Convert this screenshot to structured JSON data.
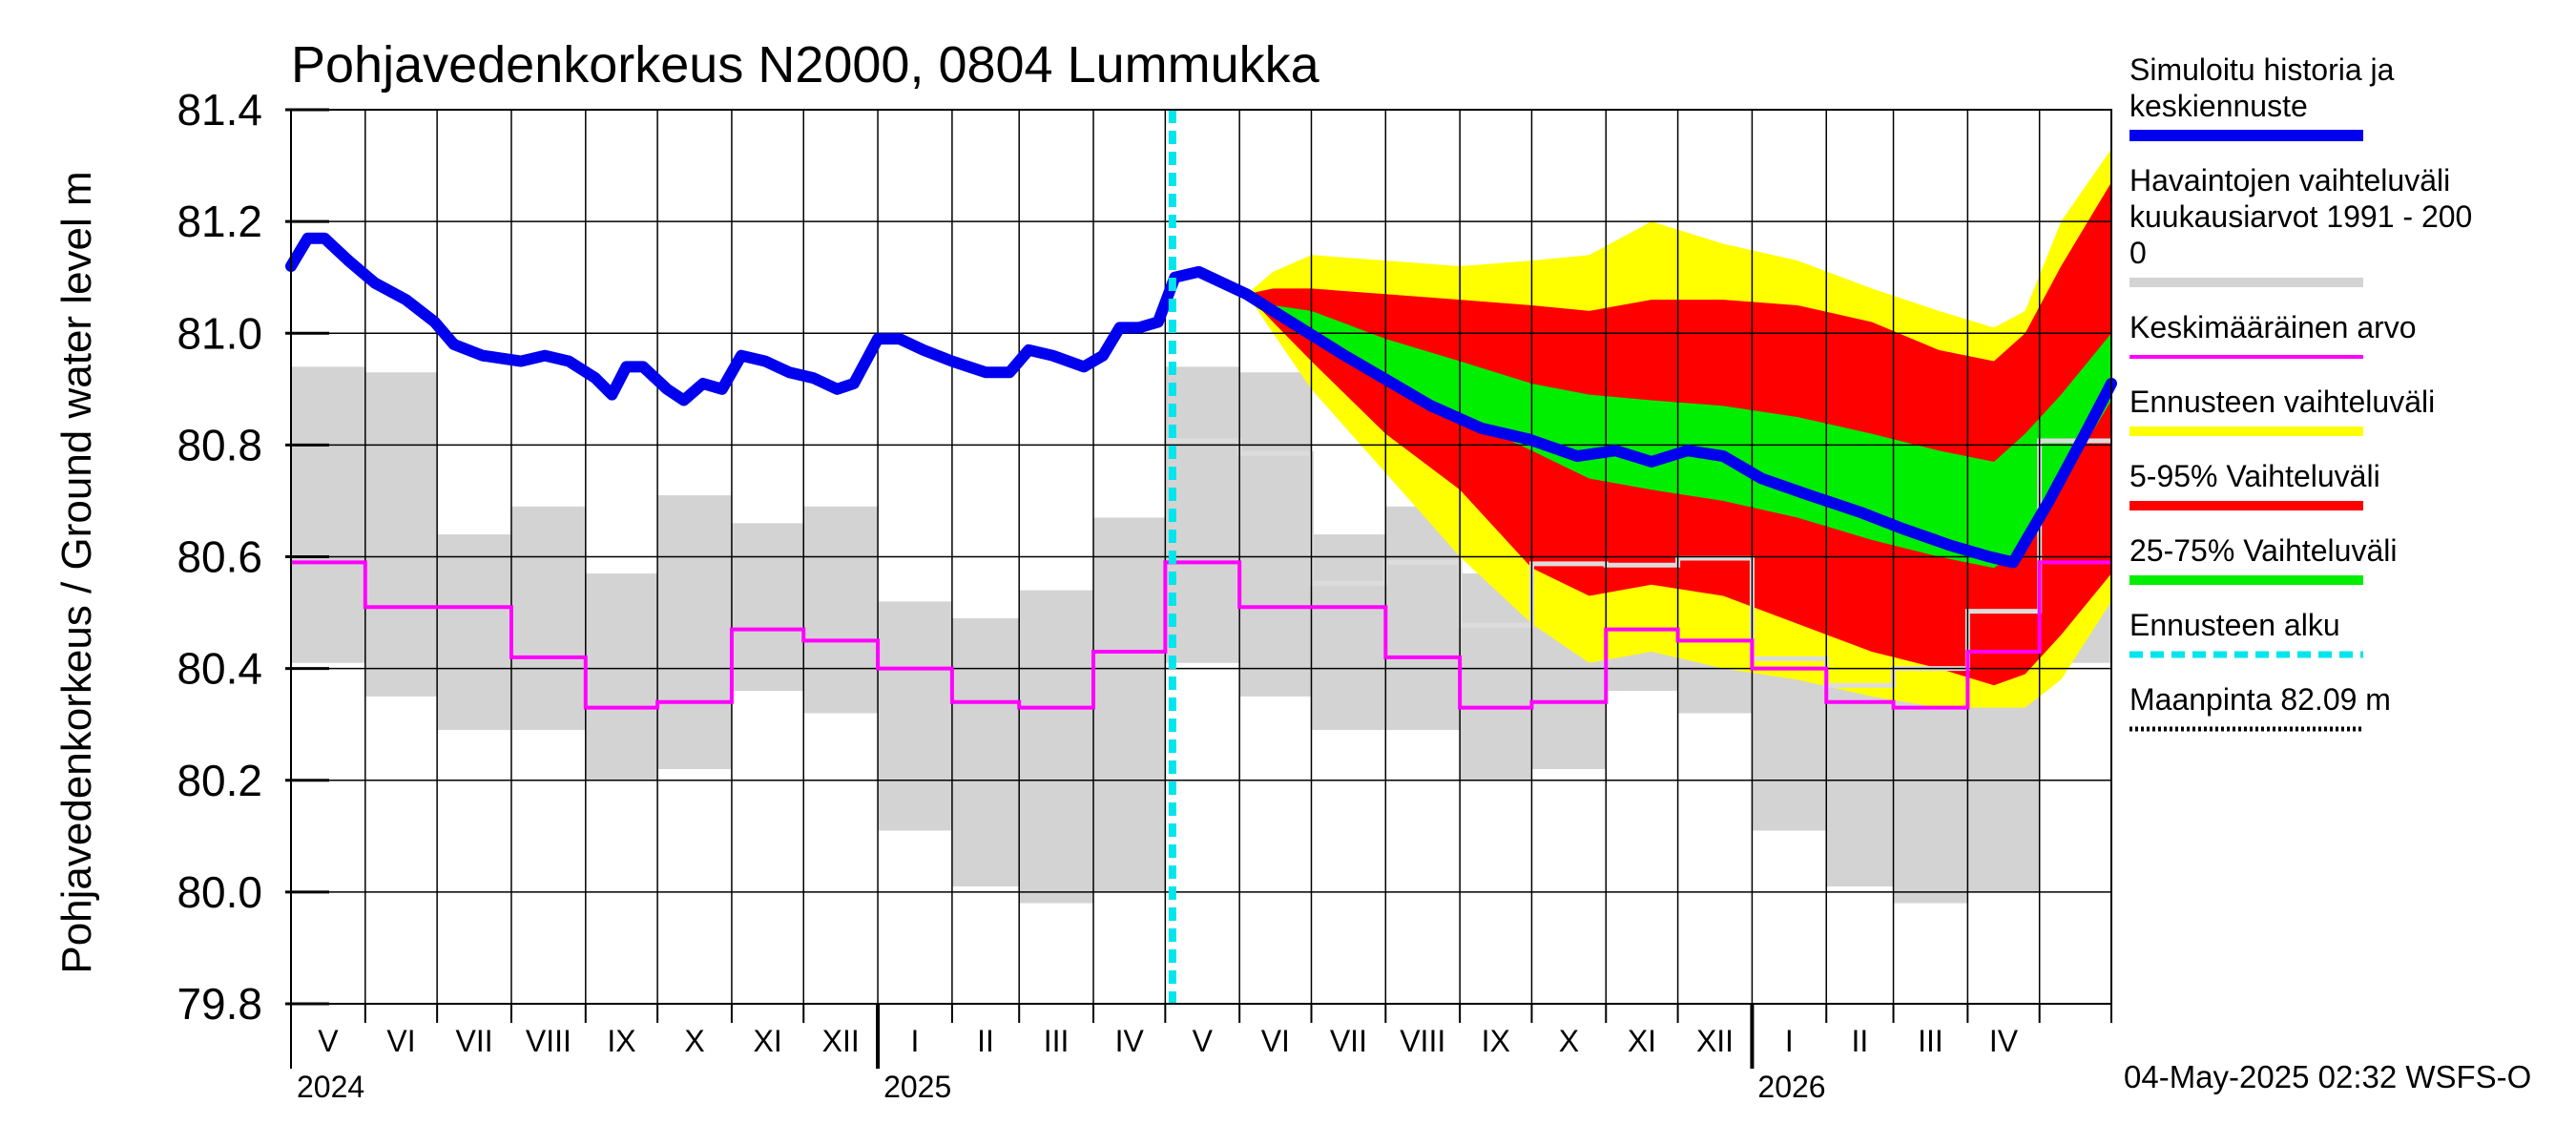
{
  "chart_data": {
    "type": "line",
    "title": "Pohjavedenkorkeus N2000, 0804 Lummukka",
    "ylabel": "Pohjavedenkorkeus / Ground water level   m",
    "ylim": [
      79.8,
      81.4
    ],
    "yticks": [
      "81.4",
      "81.2",
      "81.0",
      "80.8",
      "80.6",
      "80.4",
      "80.2",
      "80.0",
      "79.8"
    ],
    "grid": true,
    "xlim": [
      "2024-05-01",
      "2026-05-31"
    ],
    "x_months": [
      "V",
      "VI",
      "VII",
      "VIII",
      "IX",
      "X",
      "XI",
      "XII",
      "I",
      "II",
      "III",
      "IV",
      "V",
      "VI",
      "VII",
      "VIII",
      "IX",
      "X",
      "XI",
      "XII",
      "I",
      "II",
      "III",
      "IV"
    ],
    "x_years": [
      "2024",
      "2025",
      "2026"
    ],
    "forecast_start": "2025-05-04",
    "footer": "04-May-2025 02:32 WSFS-O",
    "legend_position": "right",
    "colors": {
      "history": "#0000ee",
      "observed_range": "#d3d3d3",
      "mean": "#ff00ff",
      "forecast_range": "#ffff00",
      "range_5_95": "#ff0000",
      "range_25_75": "#00ee00",
      "forecast_start": "#00e5ee",
      "ground": "#000000"
    },
    "legend": [
      {
        "label": "Simuloitu historia ja keskiennuste",
        "label_lines": [
          "Simuloitu historia ja",
          "keskiennuste"
        ],
        "color": "#0000ee",
        "style": "thick"
      },
      {
        "label": "Havaintojen vaihteluväli kuukausiarvot 1991 - 2000",
        "label_lines": [
          "Havaintojen vaihteluväli",
          " kuukausiarvot 1991 - 200",
          "0"
        ],
        "color": "#d3d3d3",
        "style": "band"
      },
      {
        "label": "Keskimääräinen arvo",
        "label_lines": [
          "Keskimääräinen arvo"
        ],
        "color": "#ff00ff",
        "style": "line"
      },
      {
        "label": "Ennusteen vaihteluväli",
        "label_lines": [
          "Ennusteen vaihteluväli"
        ],
        "color": "#ffff00",
        "style": "band"
      },
      {
        "label": "5-95% Vaihteluväli",
        "label_lines": [
          "5-95% Vaihteluväli"
        ],
        "color": "#ff0000",
        "style": "band"
      },
      {
        "label": "25-75% Vaihteluväli",
        "label_lines": [
          "25-75% Vaihteluväli"
        ],
        "color": "#00ee00",
        "style": "band"
      },
      {
        "label": "Ennusteen alku",
        "label_lines": [
          "Ennusteen alku"
        ],
        "color": "#00e5ee",
        "style": "dashed"
      },
      {
        "label": "Maanpinta 82.09 m",
        "label_lines": [
          "Maanpinta 82.09 m"
        ],
        "color": "#000000",
        "style": "dotted"
      }
    ],
    "observed_monthly": [
      {
        "month": "V",
        "min": 80.41,
        "max": 80.94,
        "mean": 80.59
      },
      {
        "month": "VI",
        "min": 80.35,
        "max": 80.93,
        "mean": 80.51
      },
      {
        "month": "VII",
        "min": 80.29,
        "max": 80.64,
        "mean": 80.51
      },
      {
        "month": "VIII",
        "min": 80.29,
        "max": 80.69,
        "mean": 80.42
      },
      {
        "month": "IX",
        "min": 80.2,
        "max": 80.57,
        "mean": 80.33
      },
      {
        "month": "X",
        "min": 80.22,
        "max": 80.71,
        "mean": 80.34
      },
      {
        "month": "XI",
        "min": 80.36,
        "max": 80.66,
        "mean": 80.47
      },
      {
        "month": "XII",
        "min": 80.32,
        "max": 80.69,
        "mean": 80.45
      },
      {
        "month": "I",
        "min": 80.11,
        "max": 80.52,
        "mean": 80.4
      },
      {
        "month": "II",
        "min": 80.01,
        "max": 80.49,
        "mean": 80.34
      },
      {
        "month": "III",
        "min": 79.98,
        "max": 80.54,
        "mean": 80.33
      },
      {
        "month": "IV",
        "min": 80.0,
        "max": 80.67,
        "mean": 80.43
      }
    ],
    "series": [
      {
        "name": "Simuloitu historia ja keskiennuste",
        "points": [
          [
            "2024-05-01",
            81.12
          ],
          [
            "2024-05-08",
            81.17
          ],
          [
            "2024-05-15",
            81.17
          ],
          [
            "2024-05-25",
            81.13
          ],
          [
            "2024-06-05",
            81.09
          ],
          [
            "2024-06-18",
            81.06
          ],
          [
            "2024-06-30",
            81.02
          ],
          [
            "2024-07-08",
            80.98
          ],
          [
            "2024-07-20",
            80.96
          ],
          [
            "2024-08-05",
            80.95
          ],
          [
            "2024-08-15",
            80.96
          ],
          [
            "2024-08-25",
            80.95
          ],
          [
            "2024-09-05",
            80.92
          ],
          [
            "2024-09-12",
            80.89
          ],
          [
            "2024-09-18",
            80.94
          ],
          [
            "2024-09-25",
            80.94
          ],
          [
            "2024-10-05",
            80.9
          ],
          [
            "2024-10-12",
            80.88
          ],
          [
            "2024-10-20",
            80.91
          ],
          [
            "2024-10-28",
            80.9
          ],
          [
            "2024-11-05",
            80.96
          ],
          [
            "2024-11-15",
            80.95
          ],
          [
            "2024-11-25",
            80.93
          ],
          [
            "2024-12-05",
            80.92
          ],
          [
            "2024-12-15",
            80.9
          ],
          [
            "2024-12-22",
            80.91
          ],
          [
            "2025-01-01",
            80.99
          ],
          [
            "2025-01-10",
            80.99
          ],
          [
            "2025-01-20",
            80.97
          ],
          [
            "2025-02-01",
            80.95
          ],
          [
            "2025-02-15",
            80.93
          ],
          [
            "2025-02-25",
            80.93
          ],
          [
            "2025-03-05",
            80.97
          ],
          [
            "2025-03-15",
            80.96
          ],
          [
            "2025-03-28",
            80.94
          ],
          [
            "2025-04-05",
            80.96
          ],
          [
            "2025-04-12",
            81.01
          ],
          [
            "2025-04-20",
            81.01
          ],
          [
            "2025-04-28",
            81.02
          ],
          [
            "2025-05-05",
            81.1
          ],
          [
            "2025-05-15",
            81.11
          ],
          [
            "2025-05-25",
            81.09
          ],
          [
            "2025-06-04",
            81.07
          ],
          [
            "2025-06-15",
            81.04
          ],
          [
            "2025-06-30",
            81.0
          ],
          [
            "2025-07-15",
            80.96
          ],
          [
            "2025-07-31",
            80.92
          ],
          [
            "2025-08-20",
            80.87
          ],
          [
            "2025-09-10",
            80.83
          ],
          [
            "2025-09-30",
            80.81
          ],
          [
            "2025-10-20",
            80.78
          ],
          [
            "2025-11-05",
            80.79
          ],
          [
            "2025-11-20",
            80.77
          ],
          [
            "2025-12-05",
            80.79
          ],
          [
            "2025-12-20",
            80.78
          ],
          [
            "2026-01-05",
            80.74
          ],
          [
            "2026-01-25",
            80.71
          ],
          [
            "2026-02-15",
            80.68
          ],
          [
            "2026-03-05",
            80.65
          ],
          [
            "2026-03-25",
            80.62
          ],
          [
            "2026-04-10",
            80.6
          ],
          [
            "2026-04-20",
            80.59
          ],
          [
            "2026-05-05",
            80.7
          ],
          [
            "2026-05-20",
            80.82
          ],
          [
            "2026-05-31",
            80.91
          ]
        ]
      }
    ],
    "forecast_bands": [
      {
        "date": "2025-06-04",
        "p_low": 81.07,
        "p5": 81.07,
        "p25": 81.07,
        "p75": 81.07,
        "p95": 81.07,
        "p_high": 81.07
      },
      {
        "date": "2025-06-15",
        "p_low": 81.0,
        "p5": 81.02,
        "p25": 81.04,
        "p75": 81.05,
        "p95": 81.08,
        "p_high": 81.11
      },
      {
        "date": "2025-07-01",
        "p_low": 80.9,
        "p5": 80.95,
        "p25": 81.0,
        "p75": 81.04,
        "p95": 81.08,
        "p_high": 81.14
      },
      {
        "date": "2025-08-01",
        "p_low": 80.75,
        "p5": 80.82,
        "p25": 80.91,
        "p75": 80.99,
        "p95": 81.07,
        "p_high": 81.13
      },
      {
        "date": "2025-09-01",
        "p_low": 80.6,
        "p5": 80.72,
        "p25": 80.85,
        "p75": 80.95,
        "p95": 81.06,
        "p_high": 81.12
      },
      {
        "date": "2025-10-01",
        "p_low": 80.48,
        "p5": 80.58,
        "p25": 80.79,
        "p75": 80.91,
        "p95": 81.05,
        "p_high": 81.13
      },
      {
        "date": "2025-10-25",
        "p_low": 80.41,
        "p5": 80.53,
        "p25": 80.74,
        "p75": 80.89,
        "p95": 81.04,
        "p_high": 81.14
      },
      {
        "date": "2025-11-20",
        "p_low": 80.43,
        "p5": 80.55,
        "p25": 80.72,
        "p75": 80.88,
        "p95": 81.06,
        "p_high": 81.2
      },
      {
        "date": "2025-12-20",
        "p_low": 80.4,
        "p5": 80.53,
        "p25": 80.7,
        "p75": 80.87,
        "p95": 81.06,
        "p_high": 81.16
      },
      {
        "date": "2026-01-20",
        "p_low": 80.38,
        "p5": 80.48,
        "p25": 80.67,
        "p75": 80.85,
        "p95": 81.05,
        "p_high": 81.13
      },
      {
        "date": "2026-02-20",
        "p_low": 80.35,
        "p5": 80.43,
        "p25": 80.63,
        "p75": 80.82,
        "p95": 81.02,
        "p_high": 81.08
      },
      {
        "date": "2026-03-20",
        "p_low": 80.33,
        "p5": 80.4,
        "p25": 80.6,
        "p75": 80.79,
        "p95": 80.97,
        "p_high": 81.04
      },
      {
        "date": "2026-04-12",
        "p_low": 80.33,
        "p5": 80.37,
        "p25": 80.58,
        "p75": 80.77,
        "p95": 80.95,
        "p_high": 81.01
      },
      {
        "date": "2026-04-25",
        "p_low": 80.33,
        "p5": 80.39,
        "p25": 80.62,
        "p75": 80.82,
        "p95": 81.0,
        "p_high": 81.04
      },
      {
        "date": "2026-05-10",
        "p_low": 80.38,
        "p5": 80.46,
        "p25": 80.73,
        "p75": 80.89,
        "p95": 81.12,
        "p_high": 81.2
      },
      {
        "date": "2026-05-31",
        "p_low": 80.52,
        "p5": 80.57,
        "p25": 80.88,
        "p75": 81.0,
        "p95": 81.27,
        "p_high": 81.33
      }
    ]
  }
}
